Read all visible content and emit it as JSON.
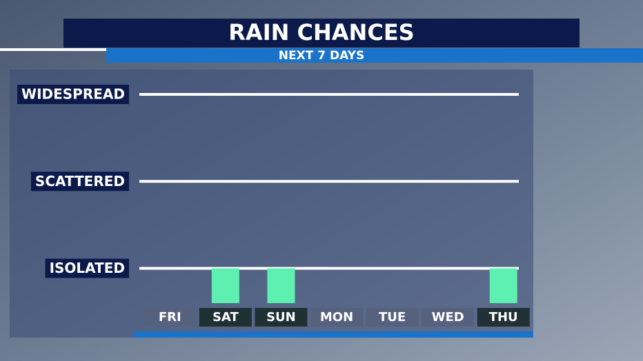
{
  "chart_data": {
    "type": "bar",
    "title": "RAIN CHANCES",
    "subtitle": "NEXT 7 DAYS",
    "categories": [
      "FRI",
      "SAT",
      "SUN",
      "MON",
      "TUE",
      "WED",
      "THU"
    ],
    "values": [
      null,
      1,
      1,
      null,
      null,
      null,
      1
    ],
    "color": "#5ef0b0",
    "ylim": [
      0.6,
      3
    ],
    "yticks": [
      {
        "value": 1,
        "label": "ISOLATED"
      },
      {
        "value": 2,
        "label": "SCATTERED"
      },
      {
        "value": 3,
        "label": "WIDESPREAD"
      }
    ],
    "grid": true
  }
}
